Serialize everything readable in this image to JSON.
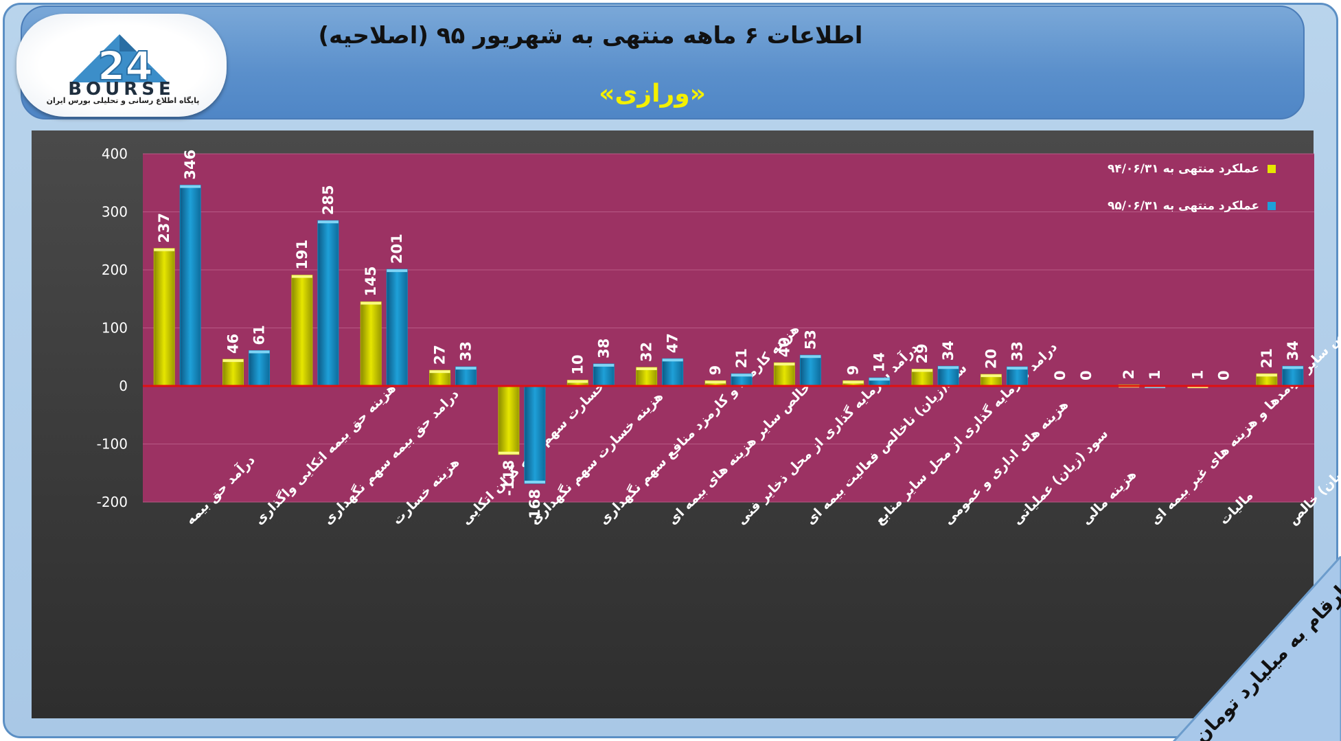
{
  "header": {
    "title": "اطلاعات ۶ ماهه منتهی به شهریور ۹۵ (اصلاحیه)",
    "subtitle": "«ورازی»"
  },
  "logo": {
    "brand": "BOURSE",
    "tagline": "پایگاه اطلاع رسانی و تحلیلی بورس ایران"
  },
  "unit_note": "ارقام به میلیارد تومان",
  "colors": {
    "plot_bg": "#9c3263",
    "series1": "#e6e600",
    "series2": "#1ea0d8",
    "zero_line": "#e01010",
    "grid": "#b85a86"
  },
  "chart_data": {
    "type": "bar",
    "categories": [
      "درآمد حق بیمه",
      "هزینه حق بیمه اتکایی واگذاری",
      "درامد حق بیمه سهم نگهداری",
      "هزینه خسارت",
      "خسارت سهم بیمه گران اتکایی",
      "هزینه خسارت سهم نگهداری",
      "هزینه کارمزد و کارمزد منافع سهم نگهداری",
      "خالص سایر هزینه های بیمه ای",
      "درآمد سرمایه گذاری از محل ذخایر فنی",
      "سود(زیان) ناخالص فعالیت بیمه ای",
      "درامد سرمایه گذاری از محل سایر منابع",
      "هزینه های اداری و عمومی",
      "سود (زیان) عملیاتی",
      "هزینه مالی",
      "خالص سایر درامدها و هزینه های غیر بیمه ای",
      "مالیات",
      "سود (زیان) خالص"
    ],
    "series": [
      {
        "name": "عملکرد منتهی به ۹۴/۰۶/۳۱",
        "values": [
          237,
          46,
          191,
          145,
          27,
          -118,
          10,
          32,
          9,
          40,
          9,
          29,
          20,
          0,
          2,
          1,
          21
        ]
      },
      {
        "name": "عملکرد منتهی به ۹۵/۰۶/۳۱",
        "values": [
          346,
          61,
          285,
          201,
          33,
          -168,
          38,
          47,
          21,
          53,
          14,
          34,
          33,
          0,
          1,
          0,
          34
        ]
      }
    ],
    "yticks": [
      "400",
      "300",
      "200",
      "100",
      "0",
      "-100",
      "-200"
    ],
    "ylim": [
      -200,
      400
    ],
    "grid": true,
    "legend_position": "top-right"
  }
}
